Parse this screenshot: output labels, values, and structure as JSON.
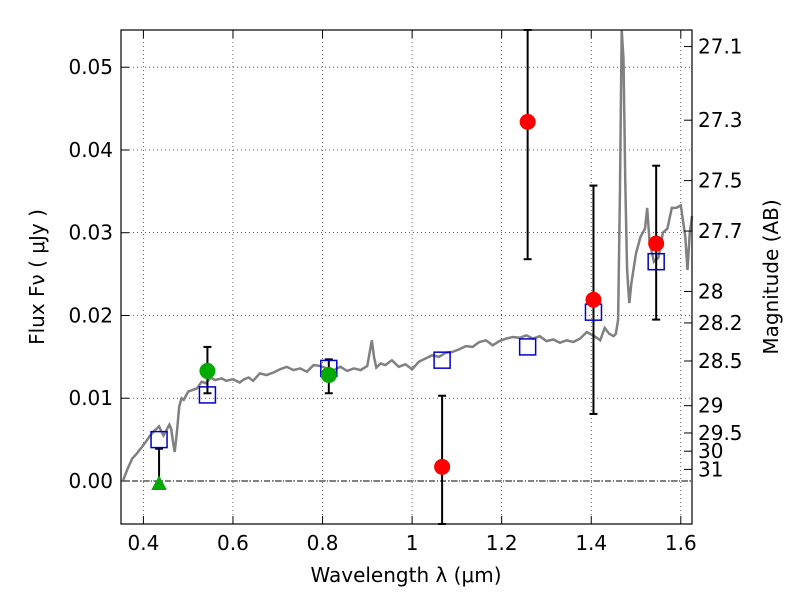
{
  "chart_data": {
    "type": "scatter",
    "xlabel": "Wavelength  λ (μm)",
    "ylabel": "Flux  Fν  ( μJy )",
    "right_ylabel": "Magnitude (AB)",
    "xlim": [
      0.35,
      1.625
    ],
    "ylim": [
      -0.0052,
      0.0545
    ],
    "xticks": [
      0.4,
      0.6,
      0.8,
      1.0,
      1.2,
      1.4,
      1.6
    ],
    "xtick_labels": [
      "0.4",
      "0.6",
      "0.8",
      "1",
      "1.2",
      "1.4",
      "1.6"
    ],
    "yticks": [
      0.0,
      0.01,
      0.02,
      0.03,
      0.04,
      0.05
    ],
    "ytick_labels": [
      "0.00",
      "0.01",
      "0.02",
      "0.03",
      "0.04",
      "0.05"
    ],
    "right_ticks": [
      {
        "label": "27.1",
        "flux": 0.0525
      },
      {
        "label": "27.3",
        "flux": 0.0436
      },
      {
        "label": "27.5",
        "flux": 0.0363
      },
      {
        "label": "27.7",
        "flux": 0.0302
      },
      {
        "label": "28",
        "flux": 0.0229
      },
      {
        "label": "28.2",
        "flux": 0.0191
      },
      {
        "label": "28.5",
        "flux": 0.0145
      },
      {
        "label": "29",
        "flux": 0.0091
      },
      {
        "label": "29.5",
        "flux": 0.0058
      },
      {
        "label": "30",
        "flux": 0.0036
      },
      {
        "label": "31",
        "flux": 0.0014
      }
    ],
    "grid": true,
    "colors": {
      "model": "#808080",
      "model_points": "#0000cc",
      "red_points": "#ff0000",
      "green_points": "#00aa00",
      "errorbar": "#000000"
    },
    "model_spectrum": {
      "x": [
        0.355,
        0.365,
        0.375,
        0.385,
        0.395,
        0.405,
        0.415,
        0.425,
        0.435,
        0.44,
        0.445,
        0.452,
        0.458,
        0.462,
        0.466,
        0.47,
        0.475,
        0.48,
        0.485,
        0.49,
        0.5,
        0.51,
        0.52,
        0.53,
        0.54,
        0.55,
        0.56,
        0.575,
        0.585,
        0.6,
        0.615,
        0.625,
        0.635,
        0.645,
        0.66,
        0.675,
        0.69,
        0.705,
        0.72,
        0.735,
        0.75,
        0.765,
        0.78,
        0.795,
        0.81,
        0.825,
        0.84,
        0.855,
        0.87,
        0.885,
        0.9,
        0.91,
        0.915,
        0.92,
        0.93,
        0.94,
        0.955,
        0.97,
        0.985,
        1.0,
        1.015,
        1.03,
        1.045,
        1.06,
        1.075,
        1.09,
        1.105,
        1.12,
        1.135,
        1.15,
        1.165,
        1.18,
        1.195,
        1.21,
        1.225,
        1.24,
        1.255,
        1.27,
        1.285,
        1.3,
        1.315,
        1.33,
        1.345,
        1.36,
        1.375,
        1.39,
        1.4,
        1.41,
        1.42,
        1.43,
        1.44,
        1.45,
        1.455,
        1.46,
        1.464,
        1.468,
        1.472,
        1.476,
        1.48,
        1.485,
        1.49,
        1.5,
        1.51,
        1.52,
        1.525,
        1.53,
        1.54,
        1.55,
        1.56,
        1.57,
        1.58,
        1.59,
        1.6,
        1.61,
        1.615,
        1.62,
        1.625
      ],
      "y": [
        0.0001,
        0.0015,
        0.0027,
        0.0033,
        0.004,
        0.0047,
        0.0055,
        0.0061,
        0.0066,
        0.006,
        0.0055,
        0.0062,
        0.0068,
        0.0063,
        0.0048,
        0.0035,
        0.006,
        0.009,
        0.01,
        0.0098,
        0.0108,
        0.011,
        0.0112,
        0.012,
        0.0118,
        0.0125,
        0.0122,
        0.0124,
        0.0121,
        0.0123,
        0.0119,
        0.0123,
        0.0125,
        0.0121,
        0.013,
        0.0128,
        0.0131,
        0.0135,
        0.0138,
        0.0134,
        0.0136,
        0.0132,
        0.014,
        0.0139,
        0.0136,
        0.0134,
        0.0138,
        0.0133,
        0.0136,
        0.0134,
        0.0139,
        0.017,
        0.015,
        0.0137,
        0.0142,
        0.014,
        0.0146,
        0.0138,
        0.0141,
        0.0135,
        0.0144,
        0.0148,
        0.0152,
        0.015,
        0.0155,
        0.0156,
        0.0159,
        0.0163,
        0.0162,
        0.0168,
        0.017,
        0.0164,
        0.0169,
        0.0172,
        0.0174,
        0.0173,
        0.0176,
        0.0172,
        0.0175,
        0.0169,
        0.0171,
        0.0167,
        0.017,
        0.0168,
        0.0172,
        0.018,
        0.0177,
        0.0174,
        0.017,
        0.0185,
        0.0178,
        0.0175,
        0.0178,
        0.0195,
        0.0345,
        0.056,
        0.051,
        0.036,
        0.0255,
        0.0215,
        0.024,
        0.0275,
        0.0295,
        0.0305,
        0.033,
        0.029,
        0.0265,
        0.027,
        0.03,
        0.0305,
        0.033,
        0.033,
        0.0333,
        0.0295,
        0.0255,
        0.03,
        0.032
      ]
    },
    "model_points": [
      {
        "x": 0.435,
        "y": 0.005
      },
      {
        "x": 0.543,
        "y": 0.0104
      },
      {
        "x": 0.814,
        "y": 0.0136
      },
      {
        "x": 1.067,
        "y": 0.0146
      },
      {
        "x": 1.258,
        "y": 0.0162
      },
      {
        "x": 1.405,
        "y": 0.0204
      },
      {
        "x": 1.545,
        "y": 0.0265
      }
    ],
    "observed_points": [
      {
        "x": 0.543,
        "y": 0.0133,
        "err_low": 0.0106,
        "err_high": 0.0162,
        "color": "green",
        "marker": "circle"
      },
      {
        "x": 0.814,
        "y": 0.0128,
        "err_low": 0.0106,
        "err_high": 0.0147,
        "color": "green",
        "marker": "circle"
      },
      {
        "x": 1.067,
        "y": 0.0017,
        "err_low": -0.0052,
        "err_high": 0.0103,
        "color": "red",
        "marker": "circle"
      },
      {
        "x": 1.258,
        "y": 0.0434,
        "err_low": 0.0268,
        "err_high": 0.0545,
        "color": "red",
        "marker": "circle"
      },
      {
        "x": 1.405,
        "y": 0.0219,
        "err_low": 0.0081,
        "err_high": 0.0357,
        "color": "red",
        "marker": "circle"
      },
      {
        "x": 1.545,
        "y": 0.0287,
        "err_low": 0.0195,
        "err_high": 0.0381,
        "color": "red",
        "marker": "circle"
      }
    ],
    "upper_limit": {
      "x": 0.435,
      "y": -0.0003,
      "err_high": 0.0039,
      "marker": "triangle"
    }
  }
}
